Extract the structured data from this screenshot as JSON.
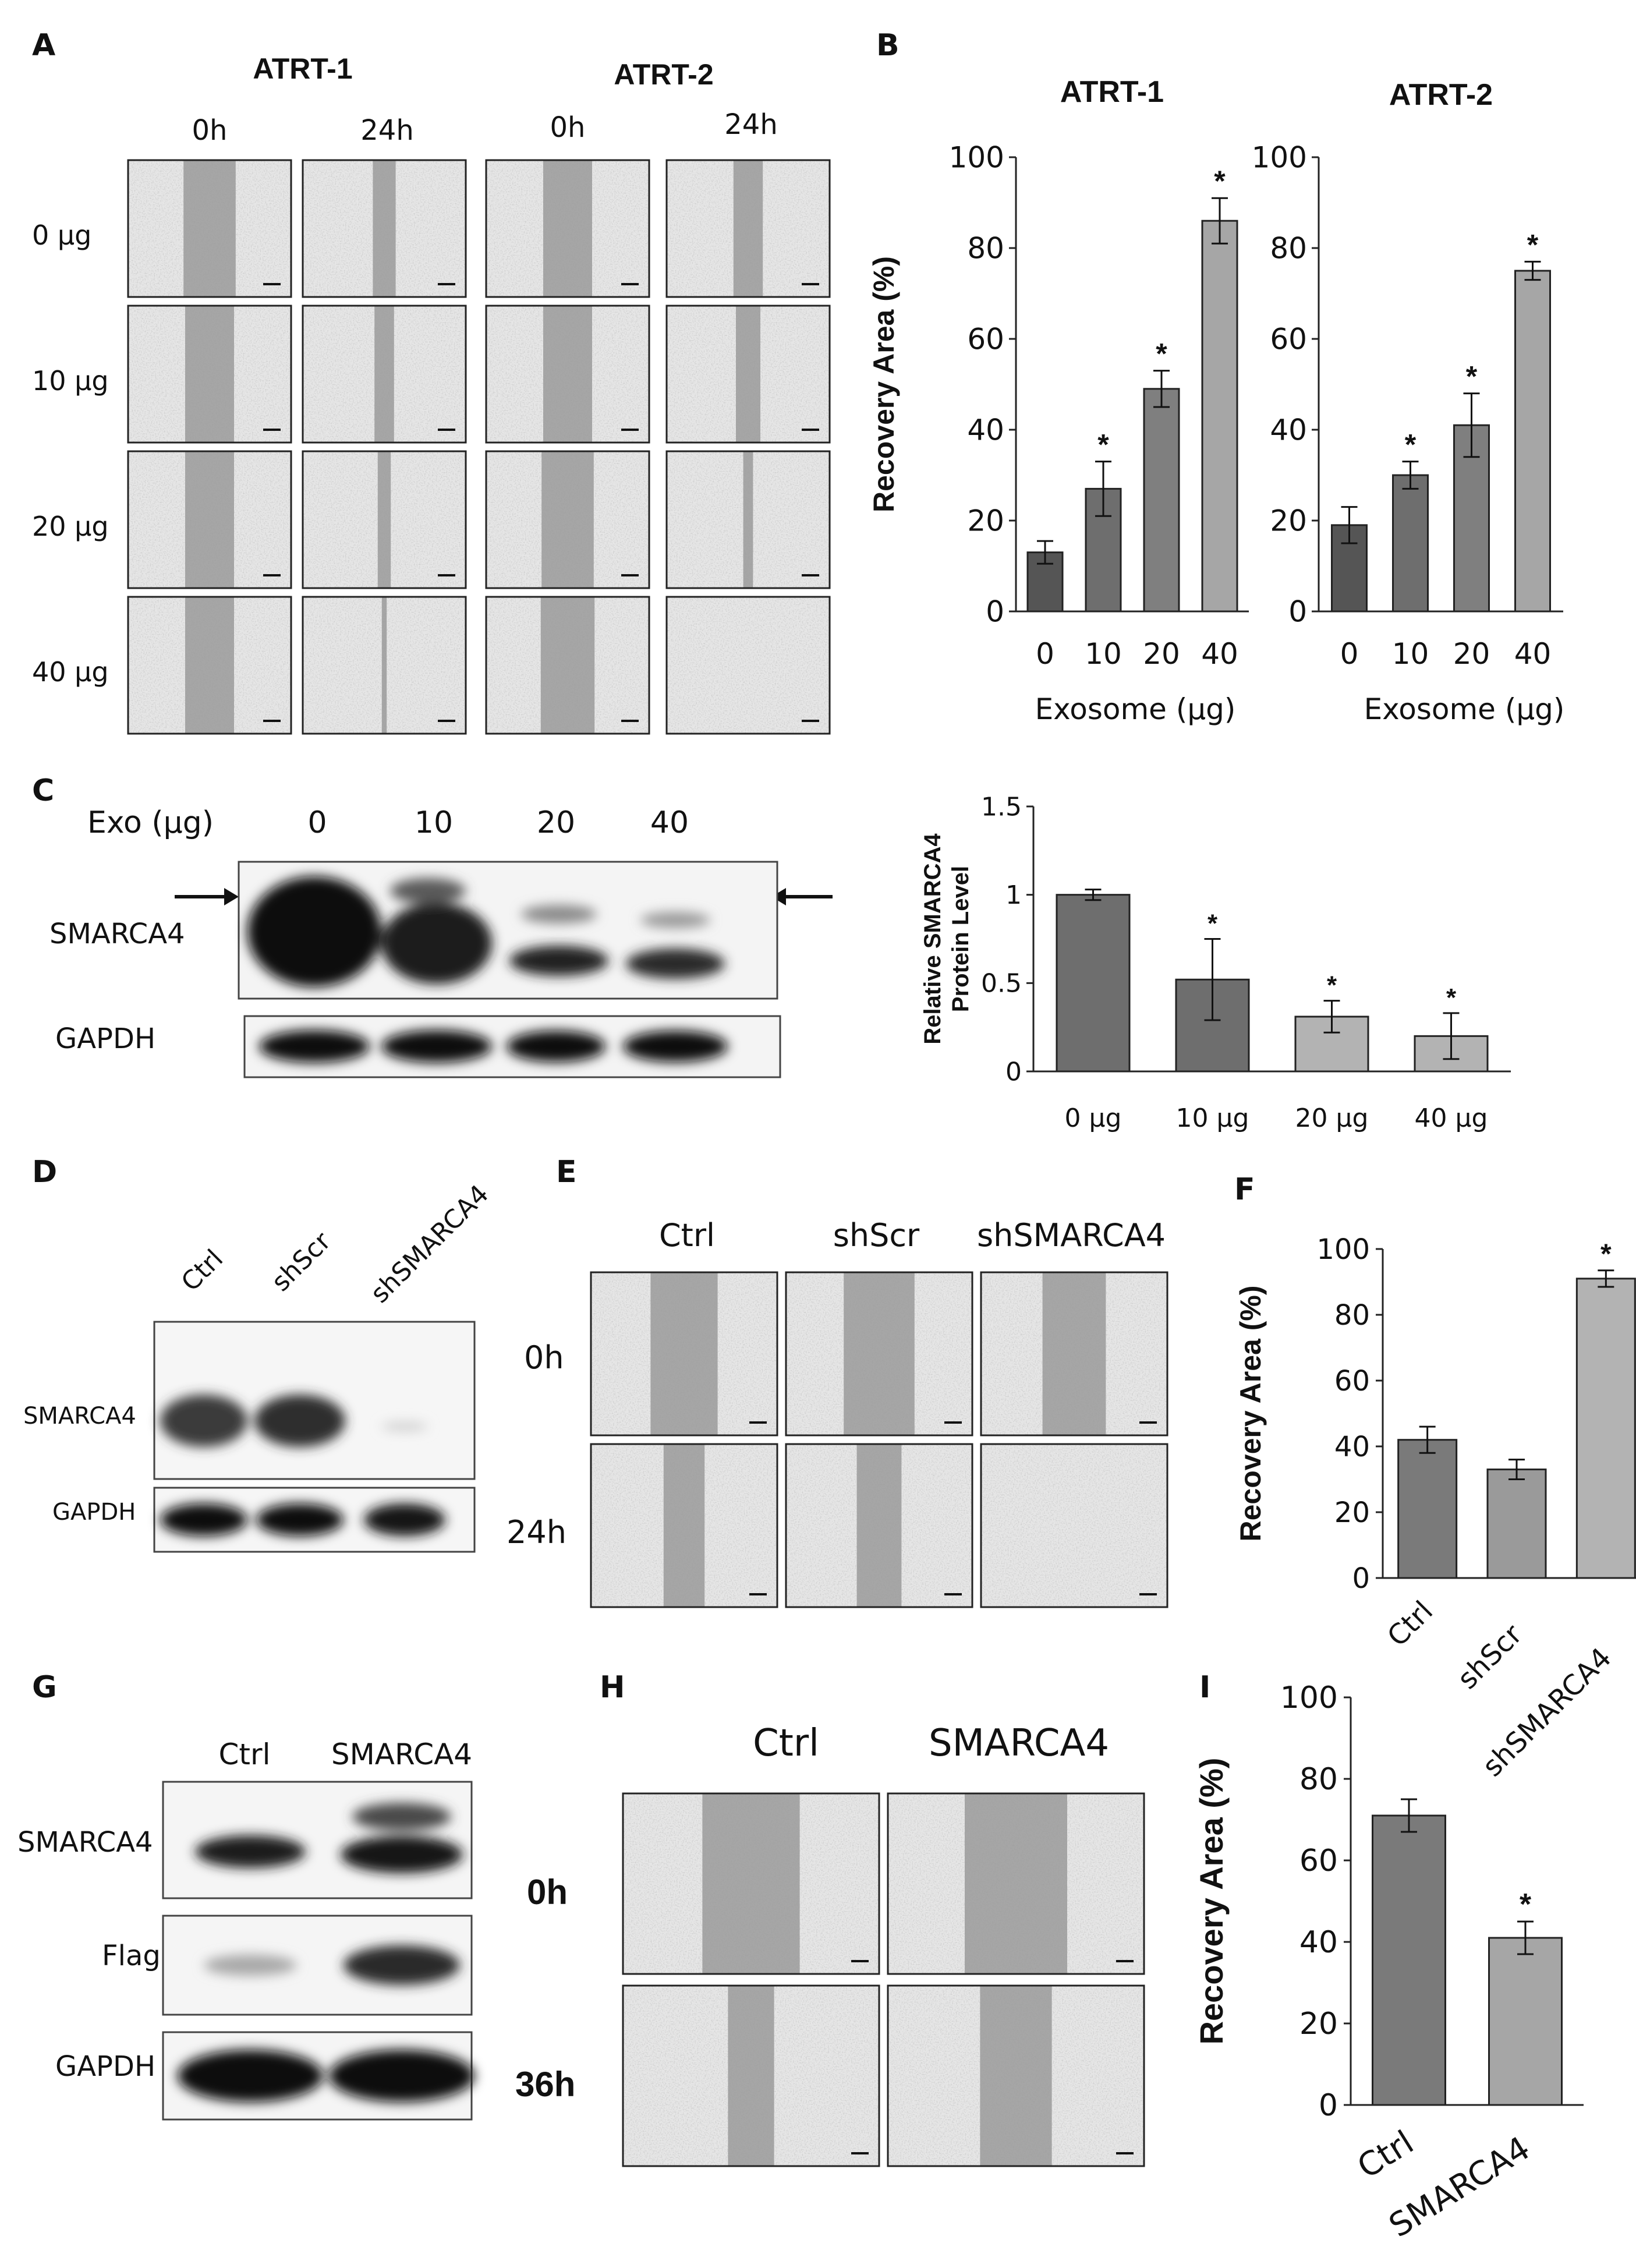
{
  "figure": {
    "panel_labels": [
      "A",
      "B",
      "C",
      "D",
      "E",
      "F",
      "G",
      "H",
      "I"
    ]
  },
  "panel_a": {
    "groups": [
      "ATRT-1",
      "ATRT-2"
    ],
    "times": [
      "0h",
      "24h",
      "0h",
      "24h"
    ],
    "rows": [
      "0 µg",
      "10 µg",
      "20 µg",
      "40 µg"
    ]
  },
  "panel_c_blot": {
    "exo_label": "Exo (µg)",
    "lanes": [
      "0",
      "10",
      "20",
      "40"
    ],
    "proteins": [
      "SMARCA4",
      "GAPDH"
    ]
  },
  "panel_d_blot": {
    "lanes": [
      "Ctrl",
      "shScr",
      "shSMARCA4"
    ],
    "proteins": [
      "SMARCA4",
      "GAPDH"
    ]
  },
  "panel_e": {
    "columns": [
      "Ctrl",
      "shScr",
      "shSMARCA4"
    ],
    "rows": [
      "0h",
      "24h"
    ]
  },
  "panel_g_blot": {
    "lanes": [
      "Ctrl",
      "SMARCA4"
    ],
    "proteins": [
      "SMARCA4",
      "Flag",
      "GAPDH"
    ]
  },
  "panel_h": {
    "columns": [
      "Ctrl",
      "SMARCA4"
    ],
    "rows": [
      "0h",
      "36h"
    ]
  },
  "chart_data": [
    {
      "id": "B1",
      "type": "bar",
      "title": "ATRT-1",
      "xlabel": "Exosome (µg)",
      "ylabel": "Recovery Area (%)",
      "categories": [
        "0",
        "10",
        "20",
        "40"
      ],
      "values": [
        13,
        27,
        49,
        86
      ],
      "errors": [
        2.5,
        6,
        4,
        5
      ],
      "significant": [
        false,
        true,
        true,
        true
      ],
      "ylim": [
        0,
        100
      ],
      "yticks": [
        "0",
        "20",
        "40",
        "60",
        "80",
        "100"
      ],
      "colors": [
        "#555555",
        "#6e6e6e",
        "#7f7f7f",
        "#a6a6a6"
      ]
    },
    {
      "id": "B2",
      "type": "bar",
      "title": "ATRT-2",
      "xlabel": "Exosome (µg)",
      "ylabel": "",
      "categories": [
        "0",
        "10",
        "20",
        "40"
      ],
      "values": [
        19,
        30,
        41,
        75
      ],
      "errors": [
        4,
        3,
        7,
        2
      ],
      "significant": [
        false,
        true,
        true,
        true
      ],
      "ylim": [
        0,
        100
      ],
      "yticks": [
        "0",
        "20",
        "40",
        "60",
        "80",
        "100"
      ],
      "colors": [
        "#555555",
        "#6e6e6e",
        "#7f7f7f",
        "#a6a6a6"
      ]
    },
    {
      "id": "C2",
      "type": "bar",
      "title": "",
      "xlabel": "",
      "ylabel": "Relative SMARCA4 Protein Level",
      "categories": [
        "0 µg",
        "10 µg",
        "20 µg",
        "40 µg"
      ],
      "values": [
        1.0,
        0.52,
        0.31,
        0.2
      ],
      "errors": [
        0.03,
        0.23,
        0.09,
        0.13
      ],
      "significant": [
        false,
        true,
        true,
        true
      ],
      "ylim": [
        0,
        1.5
      ],
      "yticks": [
        "0",
        "0.5",
        "1",
        "1.5"
      ],
      "colors": [
        "#6e6e6e",
        "#6e6e6e",
        "#b3b3b3",
        "#b3b3b3"
      ]
    },
    {
      "id": "F",
      "type": "bar",
      "title": "",
      "xlabel": "",
      "ylabel": "Recovery Area (%)",
      "categories": [
        "Ctrl",
        "shScr",
        "shSMARCA4"
      ],
      "values": [
        42,
        33,
        91
      ],
      "errors": [
        4,
        3,
        2.5
      ],
      "significant": [
        false,
        false,
        true
      ],
      "ylim": [
        0,
        100
      ],
      "yticks": [
        "0",
        "20",
        "40",
        "60",
        "80",
        "100"
      ],
      "colors": [
        "#7a7a7a",
        "#9a9a9a",
        "#b3b3b3"
      ]
    },
    {
      "id": "I",
      "type": "bar",
      "title": "",
      "xlabel": "",
      "ylabel": "Recovery Area (%)",
      "categories": [
        "Ctrl",
        "SMARCA4"
      ],
      "values": [
        71,
        41
      ],
      "errors": [
        4,
        4
      ],
      "significant": [
        false,
        true
      ],
      "ylim": [
        0,
        100
      ],
      "yticks": [
        "0",
        "20",
        "40",
        "60",
        "80",
        "100"
      ],
      "colors": [
        "#7a7a7a",
        "#a6a6a6"
      ]
    }
  ]
}
